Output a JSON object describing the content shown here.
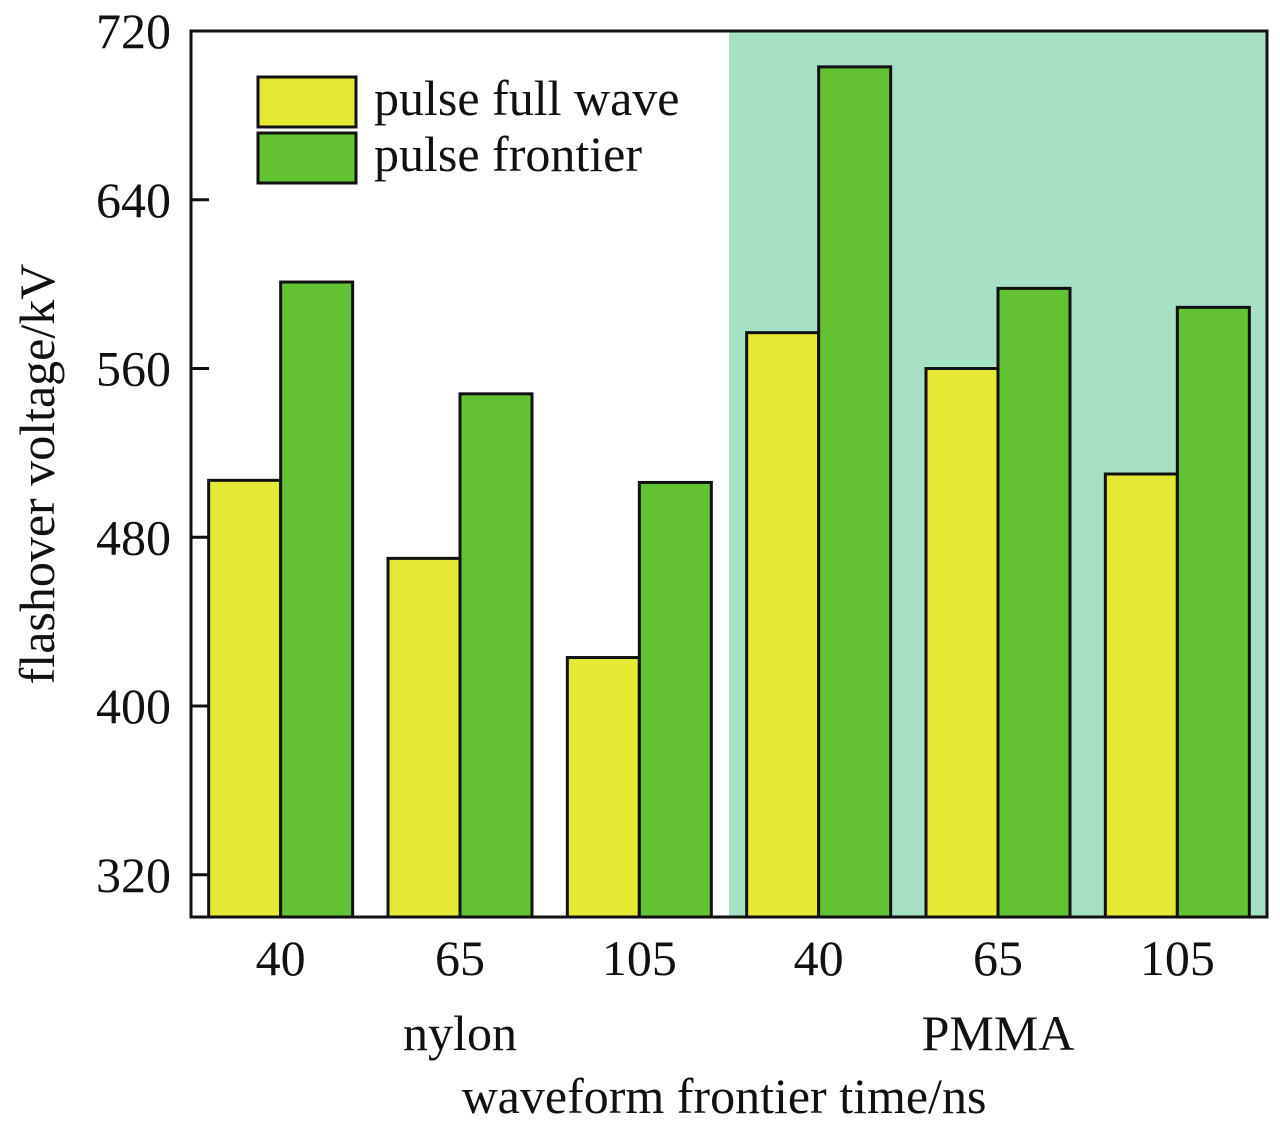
{
  "chart_data": {
    "type": "bar",
    "title": "",
    "xlabel": "waveform frontier time/ns",
    "ylabel": "flashover voltage/kV",
    "ylim": [
      300,
      720
    ],
    "yticks": [
      320,
      400,
      480,
      560,
      640,
      720
    ],
    "grid": false,
    "legend": {
      "placement": "top-left",
      "entries": [
        "pulse full wave",
        "pulse frontier"
      ]
    },
    "categories": [
      "40",
      "65",
      "105",
      "40",
      "65",
      "105"
    ],
    "groups": [
      {
        "label": "nylon",
        "category_indices": [
          0,
          1,
          2
        ],
        "highlighted": false
      },
      {
        "label": "PMMA",
        "category_indices": [
          3,
          4,
          5
        ],
        "highlighted": true
      }
    ],
    "series": [
      {
        "name": "pulse full wave",
        "color": "#e4ea34",
        "values": [
          507,
          470,
          423,
          577,
          560,
          510
        ]
      },
      {
        "name": "pulse frontier",
        "color": "#63c232",
        "values": [
          601,
          548,
          506,
          703,
          598,
          589
        ]
      }
    ],
    "colors": {
      "highlight_background": "#a6e0c5",
      "bar_outline": "#111111",
      "axis": "#111111"
    }
  }
}
